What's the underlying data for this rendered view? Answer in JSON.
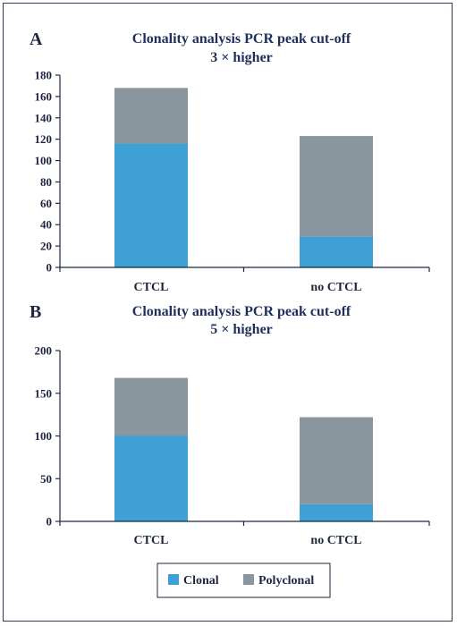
{
  "colors": {
    "clonal": "#3fa0d6",
    "polyclonal": "#8a969e",
    "axis": "#1f2740",
    "title": "#1f2f5a"
  },
  "legend": {
    "placement": "bottom-center",
    "items": [
      {
        "label": "Clonal",
        "color": "#3fa0d6"
      },
      {
        "label": "Polyclonal",
        "color": "#8a969e"
      }
    ]
  },
  "chart_data": [
    {
      "panel": "A",
      "type": "bar",
      "stacked": true,
      "title": "Clonality analysis PCR peak cut-off",
      "subtitle": "3 × higher",
      "categories": [
        "CTCL",
        "no CTCL"
      ],
      "series": [
        {
          "name": "Clonal",
          "values": [
            116,
            29
          ]
        },
        {
          "name": "Polyclonal",
          "values": [
            52,
            94
          ]
        }
      ],
      "ylim": [
        0,
        180
      ],
      "yticks": [
        0,
        20,
        40,
        60,
        80,
        100,
        120,
        140,
        160,
        180
      ],
      "grid": false
    },
    {
      "panel": "B",
      "type": "bar",
      "stacked": true,
      "title": "Clonality analysis PCR peak cut-off",
      "subtitle": "5 × higher",
      "categories": [
        "CTCL",
        "no CTCL"
      ],
      "series": [
        {
          "name": "Clonal",
          "values": [
            100,
            20
          ]
        },
        {
          "name": "Polyclonal",
          "values": [
            68,
            102
          ]
        }
      ],
      "ylim": [
        0,
        200
      ],
      "yticks": [
        0,
        50,
        100,
        150,
        200
      ],
      "grid": false
    }
  ]
}
